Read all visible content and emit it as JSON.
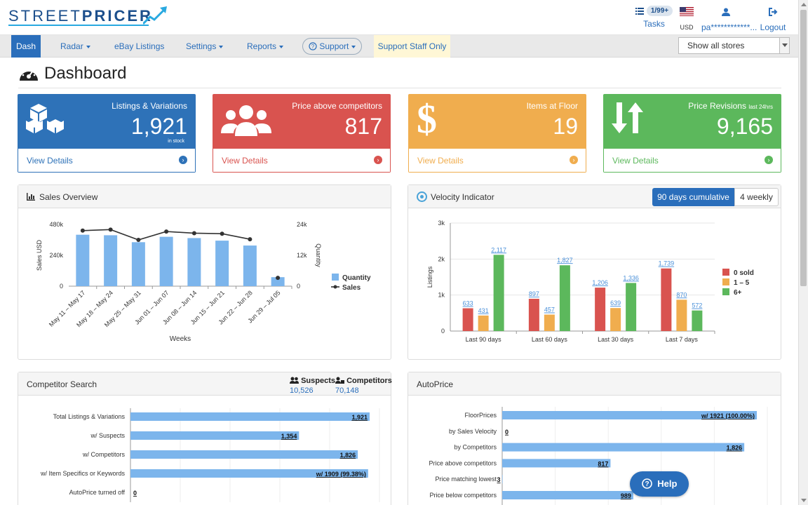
{
  "brand": {
    "logo_word_a": "STREET",
    "logo_word_b": "PRICER"
  },
  "header": {
    "tasks_badge": "1/99+",
    "tasks_label": "Tasks",
    "currency_label": "USD",
    "user_label": "pa************...",
    "logout_label": "Logout"
  },
  "nav": {
    "dash": "Dash",
    "radar": "Radar",
    "ebay": "eBay Listings",
    "settings": "Settings",
    "reports": "Reports",
    "support": "Support",
    "staff": "Support Staff Only",
    "store_select": "Show all stores"
  },
  "page": {
    "title": "Dashboard"
  },
  "cards": [
    {
      "caption": "Listings & Variations",
      "value": "1,921",
      "sub": "in stock",
      "link": "View Details",
      "color": "#2e72b8"
    },
    {
      "caption": "Price above competitors",
      "value": "817",
      "link": "View Details",
      "color": "#d9534f"
    },
    {
      "caption": "Items at Floor",
      "value": "19",
      "link": "View Details",
      "color": "#f0ad4e"
    },
    {
      "caption": "Price Revisions",
      "caption_small": "last 24hrs",
      "value": "9,165",
      "link": "View Details",
      "color": "#5cb85c"
    }
  ],
  "sales_panel": {
    "title": "Sales Overview"
  },
  "velocity_panel": {
    "title": "Velocity Indicator",
    "toggle_a": "90 days cumulative",
    "toggle_b": "4 weekly"
  },
  "competitor_panel": {
    "title": "Competitor Search",
    "suspects_label": "Suspects",
    "suspects_value": "10,526",
    "competitors_label": "Competitors",
    "competitors_value": "70,148"
  },
  "autoprice_panel": {
    "title": "AutoPrice"
  },
  "help_label": "Help",
  "chart_data": [
    {
      "type": "bar",
      "name": "sales-overview",
      "title": "Sales Overview",
      "categories": [
        "May 11 – May 17",
        "May 18 – May 24",
        "May 25 – May 31",
        "Jun 01 – Jun 07",
        "Jun 08 – Jun 14",
        "Jun 15 – Jun 21",
        "Jun 22 – Jun 28",
        "Jun 29 – Jul 05"
      ],
      "series": [
        {
          "name": "Quantity",
          "kind": "bar",
          "axis": "right",
          "values": [
            20000,
            19800,
            17100,
            19200,
            18700,
            17700,
            15800,
            3500
          ]
        },
        {
          "name": "Sales",
          "kind": "line",
          "axis": "left",
          "values": [
            432000,
            440000,
            360000,
            425000,
            412000,
            408000,
            365000,
            65000
          ]
        }
      ],
      "xlabel": "Weeks",
      "ylabel": "Sales USD",
      "y2label": "Quantity",
      "ylim": [
        0,
        480000
      ],
      "y2lim": [
        0,
        24000
      ],
      "yticks": [
        "0",
        "240k",
        "480k"
      ],
      "y2ticks": [
        "0",
        "12k",
        "24k"
      ],
      "legend": "right"
    },
    {
      "type": "bar",
      "name": "velocity-indicator",
      "title": "Velocity Indicator",
      "categories": [
        "Last 90 days",
        "Last 60 days",
        "Last 30 days",
        "Last 7 days"
      ],
      "series": [
        {
          "name": "0 sold",
          "color": "#d9534f",
          "values": [
            633,
            897,
            1206,
            1739
          ]
        },
        {
          "name": "1 – 5",
          "color": "#f0ad4e",
          "values": [
            431,
            457,
            639,
            870
          ]
        },
        {
          "name": "6+",
          "color": "#5cb85c",
          "values": [
            2117,
            1827,
            1336,
            572
          ]
        }
      ],
      "ylabel": "Listings",
      "ylim": [
        0,
        3000
      ],
      "yticks": [
        "0",
        "1k",
        "2k",
        "3k"
      ],
      "legend": "right"
    },
    {
      "type": "bar",
      "name": "competitor-search",
      "orientation": "horizontal",
      "categories": [
        "Total Listings & Variations",
        "w/ Suspects",
        "w/ Competitors",
        "w/ Item Specifics or Keywords",
        "AutoPrice turned off"
      ],
      "values": [
        1921,
        1354,
        1826,
        1909,
        0
      ],
      "labels": [
        "1,921",
        "1,354",
        "1,826",
        "w/ 1909 (99.38%)",
        "0"
      ],
      "xlim": [
        0,
        2000
      ]
    },
    {
      "type": "bar",
      "name": "autoprice",
      "orientation": "horizontal",
      "categories": [
        "FloorPrices",
        "by Sales Velocity",
        "by Competitors",
        "Price above competitors",
        "Price matching lowest",
        "Price below competitors"
      ],
      "values": [
        1921,
        0,
        1826,
        817,
        3,
        989
      ],
      "labels": [
        "w/ 1921 (100.00%)",
        "0",
        "1,826",
        "817",
        "3",
        "989"
      ],
      "xlim": [
        0,
        2000
      ]
    }
  ]
}
